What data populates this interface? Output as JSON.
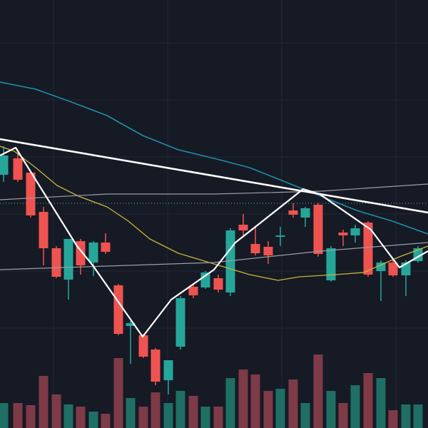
{
  "chart_data": {
    "type": "candlestick",
    "xlim": [
      0,
      600
    ],
    "ylim": [
      0,
      600
    ],
    "y2lim": [
      0,
      110
    ],
    "grid": true,
    "xticks": [
      75,
      235,
      395,
      555
    ],
    "yticks": [
      140,
      220,
      300,
      380,
      460,
      540
    ],
    "up_color": "#26a69a",
    "down_color": "#ef5350",
    "volume_up_color": "#1f6f64",
    "volume_down_color": "#7e3a47",
    "x": [
      5,
      25,
      43,
      61,
      79,
      96,
      113,
      131,
      148,
      166,
      183,
      201,
      218,
      236,
      253,
      271,
      288,
      306,
      323,
      341,
      358,
      376,
      393,
      411,
      428,
      446,
      464,
      481,
      498,
      516,
      534,
      551,
      569,
      586
    ],
    "open": [
      355,
      378,
      358,
      303,
      252,
      208,
      262,
      232,
      260,
      200,
      143,
      130,
      110,
      67,
      114,
      198,
      197,
      210,
      190,
      285,
      258,
      254,
      268,
      305,
      295,
      313,
      207,
      274,
      270,
      288,
      220,
      232,
      214,
      234
    ],
    "high": [
      395,
      390,
      360,
      310,
      255,
      265,
      265,
      262,
      273,
      202,
      150,
      132,
      112,
      95,
      185,
      202,
      220,
      215,
      280,
      300,
      282,
      262,
      282,
      315,
      310,
      315,
      255,
      278,
      285,
      290,
      235,
      235,
      235,
      255
    ],
    "low": [
      345,
      345,
      295,
      228,
      210,
      180,
      215,
      213,
      244,
      130,
      90,
      98,
      60,
      47,
      110,
      182,
      195,
      190,
      185,
      270,
      242,
      230,
      255,
      295,
      282,
      240,
      205,
      255,
      260,
      212,
      178,
      212,
      185,
      232
    ],
    "close": [
      382,
      348,
      298,
      252,
      212,
      265,
      228,
      260,
      247,
      132,
      147,
      100,
      65,
      95,
      182,
      186,
      218,
      194,
      277,
      277,
      245,
      242,
      270,
      299,
      308,
      244,
      252,
      270,
      280,
      215,
      232,
      214,
      232,
      252
    ],
    "volume": [
      35,
      35,
      32,
      73,
      47,
      33,
      30,
      23,
      20,
      98,
      42,
      30,
      50,
      35,
      52,
      45,
      30,
      30,
      70,
      82,
      75,
      52,
      55,
      68,
      35,
      103,
      52,
      35,
      60,
      77,
      70,
      25,
      33,
      33
    ],
    "lines": [
      {
        "color": "#1e8ea6",
        "width": 1.6,
        "x": [
          0,
          50,
          100,
          150,
          200,
          250,
          300,
          350,
          400,
          450,
          500,
          550,
          600
        ],
        "values": [
          485,
          475,
          457,
          438,
          410,
          390,
          378,
          365,
          345,
          325,
          305,
          290,
          272
        ]
      },
      {
        "color": "#c9b43a",
        "width": 1.3,
        "x": [
          0,
          20,
          50,
          80,
          110,
          150,
          180,
          210,
          250,
          300,
          350,
          390,
          420,
          470,
          510,
          560,
          600
        ],
        "values": [
          395,
          388,
          365,
          340,
          325,
          310,
          290,
          265,
          245,
          230,
          215,
          207,
          212,
          215,
          218,
          240,
          255
        ]
      },
      {
        "color": "#9a9ea8",
        "width": 1.2,
        "x": [
          0,
          150,
          300,
          450,
          600
        ],
        "values": [
          320,
          328,
          328,
          332,
          342
        ]
      },
      {
        "color": "#9a9ea8",
        "width": 1.2,
        "x": [
          0,
          300,
          450,
          600
        ],
        "values": [
          222,
          232,
          248,
          260
        ]
      },
      {
        "color": "#ffffff",
        "width": 2.2,
        "x": [
          0,
          22,
          108,
          130,
          200,
          240,
          300,
          330,
          358,
          425,
          448,
          520,
          560,
          600
        ],
        "values": [
          382,
          393,
          255,
          228,
          128,
          180,
          222,
          260,
          282,
          335,
          328,
          278,
          225,
          248
        ]
      },
      {
        "color": "#ffffff",
        "width": 2.6,
        "x": [
          0,
          425,
          600
        ],
        "values": [
          405,
          332,
          302
        ]
      }
    ],
    "levels": [
      {
        "color": "#3fb8c4",
        "value": 315
      }
    ]
  }
}
